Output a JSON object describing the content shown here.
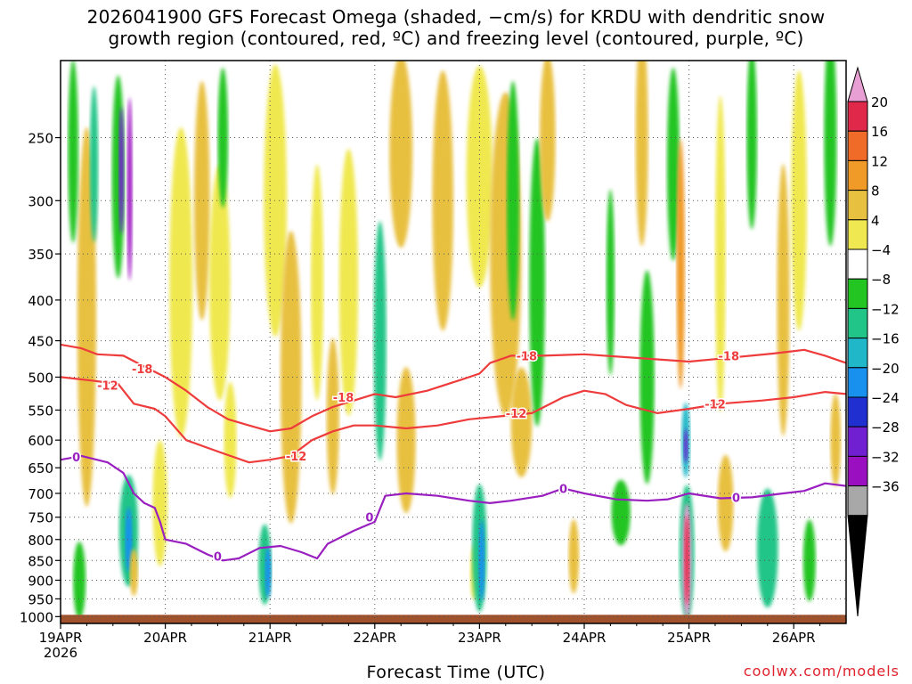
{
  "title": {
    "line1": "2026041900 GFS Forecast Omega (shaded, −cm/s) for KRDU with dendritic snow",
    "line2": "growth region (contoured, red, ºC) and freezing level (contoured, purple, ºC)"
  },
  "xlabel": "Forecast Time (UTC)",
  "credit": "coolwx.com/models",
  "colors": {
    "red_contour": "#ee3b3b",
    "purple_contour": "#9a1fc0",
    "ground": "#a0522d",
    "grid": "#555555"
  },
  "chart_data": {
    "type": "heatmap",
    "x_ticks": [
      {
        "label": "19APR",
        "sub": "2026"
      },
      {
        "label": "20APR",
        "sub": ""
      },
      {
        "label": "21APR",
        "sub": ""
      },
      {
        "label": "22APR",
        "sub": ""
      },
      {
        "label": "23APR",
        "sub": ""
      },
      {
        "label": "24APR",
        "sub": ""
      },
      {
        "label": "25APR",
        "sub": ""
      },
      {
        "label": "26APR",
        "sub": ""
      }
    ],
    "xlim_days": [
      0,
      7.5
    ],
    "y_ticks": [
      250,
      300,
      350,
      400,
      450,
      500,
      550,
      600,
      650,
      700,
      750,
      800,
      850,
      900,
      950,
      1000
    ],
    "ylim_hpa": [
      200,
      1020
    ],
    "y_log": true,
    "colorbar": {
      "labels": [
        "20",
        "16",
        "12",
        "8",
        "4",
        "−4",
        "−8",
        "−12",
        "−16",
        "−20",
        "−24",
        "−28",
        "−32",
        "−36"
      ],
      "colors": [
        "#e8a0d4",
        "#e0294a",
        "#f06a28",
        "#f09a28",
        "#e8c040",
        "#f0e850",
        "#ffffff",
        "#22c522",
        "#22c588",
        "#20b8c8",
        "#1890ee",
        "#2030d0",
        "#7020d0",
        "#9a10c0",
        "#a8a8a8",
        "#000000"
      ]
    },
    "contours": [
      {
        "level": "-18",
        "color": "red",
        "points": [
          [
            0,
            455
          ],
          [
            0.2,
            460
          ],
          [
            0.35,
            468
          ],
          [
            0.6,
            470
          ],
          [
            0.8,
            485
          ],
          [
            1.0,
            500
          ],
          [
            1.2,
            520
          ],
          [
            1.4,
            545
          ],
          [
            1.6,
            565
          ],
          [
            1.8,
            575
          ],
          [
            2.0,
            585
          ],
          [
            2.2,
            580
          ],
          [
            2.4,
            560
          ],
          [
            2.6,
            545
          ],
          [
            2.8,
            535
          ],
          [
            3.0,
            525
          ],
          [
            3.2,
            530
          ],
          [
            3.5,
            520
          ],
          [
            3.8,
            505
          ],
          [
            4.0,
            495
          ],
          [
            4.1,
            480
          ],
          [
            4.3,
            470
          ],
          [
            4.6,
            470
          ],
          [
            5.0,
            468
          ],
          [
            5.5,
            473
          ],
          [
            6.0,
            478
          ],
          [
            6.3,
            474
          ],
          [
            6.8,
            467
          ],
          [
            7.1,
            462
          ],
          [
            7.3,
            470
          ],
          [
            7.5,
            480
          ]
        ]
      },
      {
        "level": "-12",
        "color": "red",
        "points": [
          [
            0,
            500
          ],
          [
            0.3,
            505
          ],
          [
            0.55,
            510
          ],
          [
            0.7,
            540
          ],
          [
            0.9,
            548
          ],
          [
            1.0,
            560
          ],
          [
            1.2,
            600
          ],
          [
            1.5,
            620
          ],
          [
            1.8,
            640
          ],
          [
            2.0,
            635
          ],
          [
            2.2,
            628
          ],
          [
            2.4,
            600
          ],
          [
            2.6,
            585
          ],
          [
            2.8,
            575
          ],
          [
            3.0,
            575
          ],
          [
            3.3,
            580
          ],
          [
            3.6,
            575
          ],
          [
            3.9,
            565
          ],
          [
            4.2,
            560
          ],
          [
            4.5,
            555
          ],
          [
            4.8,
            530
          ],
          [
            5.0,
            520
          ],
          [
            5.2,
            525
          ],
          [
            5.4,
            542
          ],
          [
            5.7,
            555
          ],
          [
            6.0,
            548
          ],
          [
            6.3,
            540
          ],
          [
            6.7,
            535
          ],
          [
            7.0,
            530
          ],
          [
            7.3,
            522
          ],
          [
            7.5,
            525
          ]
        ]
      },
      {
        "level": "0",
        "color": "purple",
        "points": [
          [
            0,
            635
          ],
          [
            0.2,
            628
          ],
          [
            0.45,
            640
          ],
          [
            0.6,
            660
          ],
          [
            0.7,
            700
          ],
          [
            0.8,
            720
          ],
          [
            0.9,
            730
          ],
          [
            0.95,
            760
          ],
          [
            1.0,
            800
          ],
          [
            1.2,
            810
          ],
          [
            1.4,
            835
          ],
          [
            1.55,
            850
          ],
          [
            1.7,
            845
          ],
          [
            1.9,
            820
          ],
          [
            2.1,
            815
          ],
          [
            2.3,
            830
          ],
          [
            2.45,
            845
          ],
          [
            2.55,
            810
          ],
          [
            2.8,
            780
          ],
          [
            3.0,
            760
          ],
          [
            3.1,
            705
          ],
          [
            3.3,
            700
          ],
          [
            3.6,
            705
          ],
          [
            3.9,
            715
          ],
          [
            4.1,
            720
          ],
          [
            4.3,
            715
          ],
          [
            4.6,
            705
          ],
          [
            4.8,
            690
          ],
          [
            5.0,
            700
          ],
          [
            5.3,
            712
          ],
          [
            5.6,
            715
          ],
          [
            5.8,
            712
          ],
          [
            6.0,
            700
          ],
          [
            6.3,
            710
          ],
          [
            6.6,
            708
          ],
          [
            6.9,
            700
          ],
          [
            7.1,
            695
          ],
          [
            7.3,
            680
          ],
          [
            7.5,
            685
          ]
        ]
      }
    ],
    "contour_labels": [
      {
        "text": "-18",
        "color": "red",
        "x": 0.78,
        "p": 488
      },
      {
        "text": "-18",
        "color": "red",
        "x": 2.7,
        "p": 530
      },
      {
        "text": "-18",
        "color": "red",
        "x": 4.45,
        "p": 470
      },
      {
        "text": "-18",
        "color": "red",
        "x": 6.38,
        "p": 470
      },
      {
        "text": "-12",
        "color": "red",
        "x": 0.45,
        "p": 512
      },
      {
        "text": "-12",
        "color": "red",
        "x": 2.25,
        "p": 628
      },
      {
        "text": "-12",
        "color": "red",
        "x": 4.35,
        "p": 555
      },
      {
        "text": "-12",
        "color": "red",
        "x": 6.25,
        "p": 540
      },
      {
        "text": "0",
        "color": "purple",
        "x": 0.15,
        "p": 630
      },
      {
        "text": "0",
        "color": "purple",
        "x": 1.5,
        "p": 840
      },
      {
        "text": "0",
        "color": "purple",
        "x": 2.95,
        "p": 750
      },
      {
        "text": "0",
        "color": "purple",
        "x": 4.8,
        "p": 690
      },
      {
        "text": "0",
        "color": "purple",
        "x": 6.45,
        "p": 708
      }
    ],
    "blobs": [
      {
        "x": 0.25,
        "p": 420,
        "w": 0.18,
        "h": 420,
        "lvl": 4
      },
      {
        "x": 0.18,
        "p": 900,
        "w": 0.12,
        "h": 200,
        "lvl": 7
      },
      {
        "x": 0.12,
        "p": 260,
        "w": 0.1,
        "h": 160,
        "lvl": 7
      },
      {
        "x": 0.32,
        "p": 270,
        "w": 0.08,
        "h": 120,
        "lvl": 8
      },
      {
        "x": 0.55,
        "p": 280,
        "w": 0.12,
        "h": 160,
        "lvl": 7
      },
      {
        "x": 0.58,
        "p": 275,
        "w": 0.05,
        "h": 100,
        "lvl": 12
      },
      {
        "x": 0.66,
        "p": 290,
        "w": 0.05,
        "h": 150,
        "lvl": 13
      },
      {
        "x": 0.65,
        "p": 780,
        "w": 0.18,
        "h": 250,
        "lvl": 8
      },
      {
        "x": 0.65,
        "p": 800,
        "w": 0.07,
        "h": 150,
        "lvl": 10
      },
      {
        "x": 0.7,
        "p": 880,
        "w": 0.08,
        "h": 120,
        "lvl": 4
      },
      {
        "x": 0.95,
        "p": 720,
        "w": 0.14,
        "h": 260,
        "lvl": 5
      },
      {
        "x": 1.15,
        "p": 380,
        "w": 0.22,
        "h": 320,
        "lvl": 5
      },
      {
        "x": 1.35,
        "p": 300,
        "w": 0.15,
        "h": 200,
        "lvl": 4
      },
      {
        "x": 1.52,
        "p": 380,
        "w": 0.2,
        "h": 250,
        "lvl": 5
      },
      {
        "x": 1.55,
        "p": 250,
        "w": 0.1,
        "h": 100,
        "lvl": 7
      },
      {
        "x": 1.62,
        "p": 600,
        "w": 0.12,
        "h": 200,
        "lvl": 5
      },
      {
        "x": 1.95,
        "p": 860,
        "w": 0.12,
        "h": 200,
        "lvl": 8
      },
      {
        "x": 1.98,
        "p": 880,
        "w": 0.06,
        "h": 130,
        "lvl": 10
      },
      {
        "x": 2.05,
        "p": 300,
        "w": 0.22,
        "h": 280,
        "lvl": 5
      },
      {
        "x": 2.2,
        "p": 500,
        "w": 0.2,
        "h": 400,
        "lvl": 4
      },
      {
        "x": 2.45,
        "p": 380,
        "w": 0.12,
        "h": 250,
        "lvl": 5
      },
      {
        "x": 2.6,
        "p": 560,
        "w": 0.12,
        "h": 250,
        "lvl": 4
      },
      {
        "x": 2.75,
        "p": 380,
        "w": 0.18,
        "h": 280,
        "lvl": 5
      },
      {
        "x": 3.05,
        "p": 450,
        "w": 0.12,
        "h": 300,
        "lvl": 8
      },
      {
        "x": 3.25,
        "p": 260,
        "w": 0.22,
        "h": 180,
        "lvl": 4
      },
      {
        "x": 3.3,
        "p": 600,
        "w": 0.18,
        "h": 250,
        "lvl": 4
      },
      {
        "x": 3.65,
        "p": 300,
        "w": 0.2,
        "h": 250,
        "lvl": 4
      },
      {
        "x": 3.95,
        "p": 880,
        "w": 0.08,
        "h": 140,
        "lvl": 5
      },
      {
        "x": 4.0,
        "p": 280,
        "w": 0.25,
        "h": 200,
        "lvl": 5
      },
      {
        "x": 4.0,
        "p": 820,
        "w": 0.14,
        "h": 300,
        "lvl": 8
      },
      {
        "x": 4.02,
        "p": 850,
        "w": 0.06,
        "h": 200,
        "lvl": 10
      },
      {
        "x": 4.25,
        "p": 350,
        "w": 0.3,
        "h": 320,
        "lvl": 4
      },
      {
        "x": 4.32,
        "p": 300,
        "w": 0.12,
        "h": 200,
        "lvl": 7
      },
      {
        "x": 4.4,
        "p": 570,
        "w": 0.2,
        "h": 180,
        "lvl": 4
      },
      {
        "x": 4.55,
        "p": 380,
        "w": 0.15,
        "h": 300,
        "lvl": 7
      },
      {
        "x": 4.65,
        "p": 250,
        "w": 0.15,
        "h": 150,
        "lvl": 4
      },
      {
        "x": 4.9,
        "p": 840,
        "w": 0.1,
        "h": 180,
        "lvl": 4
      },
      {
        "x": 5.25,
        "p": 380,
        "w": 0.08,
        "h": 200,
        "lvl": 7
      },
      {
        "x": 5.35,
        "p": 740,
        "w": 0.18,
        "h": 140,
        "lvl": 7
      },
      {
        "x": 5.55,
        "p": 250,
        "w": 0.12,
        "h": 250,
        "lvl": 4
      },
      {
        "x": 5.6,
        "p": 500,
        "w": 0.14,
        "h": 300,
        "lvl": 7
      },
      {
        "x": 5.85,
        "p": 270,
        "w": 0.12,
        "h": 160,
        "lvl": 7
      },
      {
        "x": 5.92,
        "p": 360,
        "w": 0.08,
        "h": 250,
        "lvl": 3
      },
      {
        "x": 5.97,
        "p": 600,
        "w": 0.08,
        "h": 130,
        "lvl": 9
      },
      {
        "x": 5.97,
        "p": 610,
        "w": 0.04,
        "h": 60,
        "lvl": 12
      },
      {
        "x": 5.98,
        "p": 830,
        "w": 0.14,
        "h": 320,
        "lvl": 8
      },
      {
        "x": 5.98,
        "p": 850,
        "w": 0.09,
        "h": 280,
        "lvl": 0
      },
      {
        "x": 5.98,
        "p": 850,
        "w": 0.05,
        "h": 220,
        "lvl": 1
      },
      {
        "x": 6.3,
        "p": 350,
        "w": 0.1,
        "h": 300,
        "lvl": 5
      },
      {
        "x": 6.35,
        "p": 720,
        "w": 0.15,
        "h": 200,
        "lvl": 4
      },
      {
        "x": 6.6,
        "p": 250,
        "w": 0.1,
        "h": 180,
        "lvl": 7
      },
      {
        "x": 6.75,
        "p": 820,
        "w": 0.2,
        "h": 280,
        "lvl": 8
      },
      {
        "x": 6.9,
        "p": 400,
        "w": 0.12,
        "h": 300,
        "lvl": 4
      },
      {
        "x": 7.05,
        "p": 300,
        "w": 0.15,
        "h": 250,
        "lvl": 5
      },
      {
        "x": 7.15,
        "p": 850,
        "w": 0.12,
        "h": 200,
        "lvl": 7
      },
      {
        "x": 7.35,
        "p": 250,
        "w": 0.12,
        "h": 250,
        "lvl": 7
      },
      {
        "x": 7.4,
        "p": 600,
        "w": 0.1,
        "h": 160,
        "lvl": 4
      }
    ]
  }
}
